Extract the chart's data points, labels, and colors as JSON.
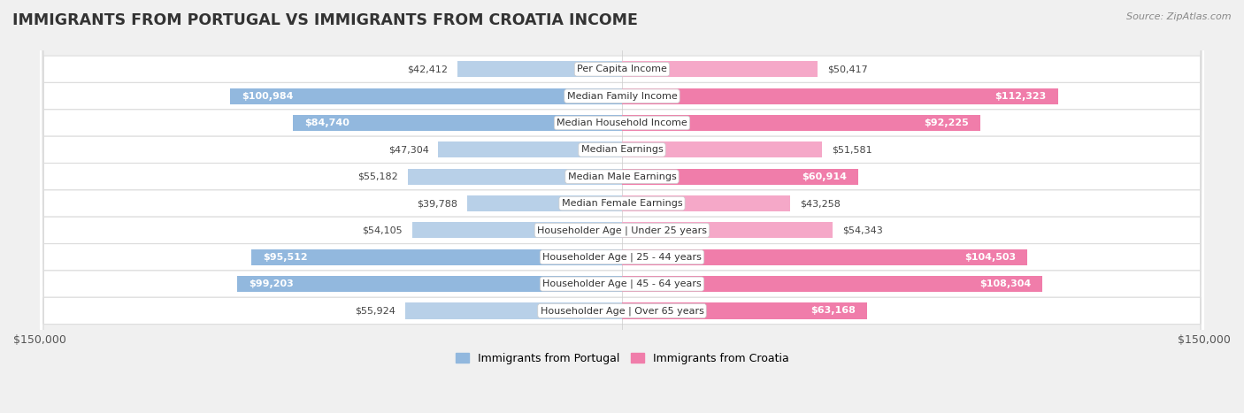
{
  "title": "IMMIGRANTS FROM PORTUGAL VS IMMIGRANTS FROM CROATIA INCOME",
  "source": "Source: ZipAtlas.com",
  "categories": [
    "Per Capita Income",
    "Median Family Income",
    "Median Household Income",
    "Median Earnings",
    "Median Male Earnings",
    "Median Female Earnings",
    "Householder Age | Under 25 years",
    "Householder Age | 25 - 44 years",
    "Householder Age | 45 - 64 years",
    "Householder Age | Over 65 years"
  ],
  "portugal_values": [
    42412,
    100984,
    84740,
    47304,
    55182,
    39788,
    54105,
    95512,
    99203,
    55924
  ],
  "croatia_values": [
    50417,
    112323,
    92225,
    51581,
    60914,
    43258,
    54343,
    104503,
    108304,
    63168
  ],
  "portugal_labels": [
    "$42,412",
    "$100,984",
    "$84,740",
    "$47,304",
    "$55,182",
    "$39,788",
    "$54,105",
    "$95,512",
    "$99,203",
    "$55,924"
  ],
  "croatia_labels": [
    "$50,417",
    "$112,323",
    "$92,225",
    "$51,581",
    "$60,914",
    "$43,258",
    "$54,343",
    "$104,503",
    "$108,304",
    "$63,168"
  ],
  "portugal_color": "#92b8de",
  "croatia_color": "#f07daa",
  "portugal_color_light": "#b8d0e8",
  "croatia_color_light": "#f5a8c8",
  "max_value": 150000,
  "bar_height": 0.6,
  "background_color": "#f0f0f0",
  "row_bg_color": "#f9f9f9",
  "row_border_color": "#dddddd",
  "legend_portugal": "Immigrants from Portugal",
  "legend_croatia": "Immigrants from Croatia",
  "inside_threshold": 60000
}
